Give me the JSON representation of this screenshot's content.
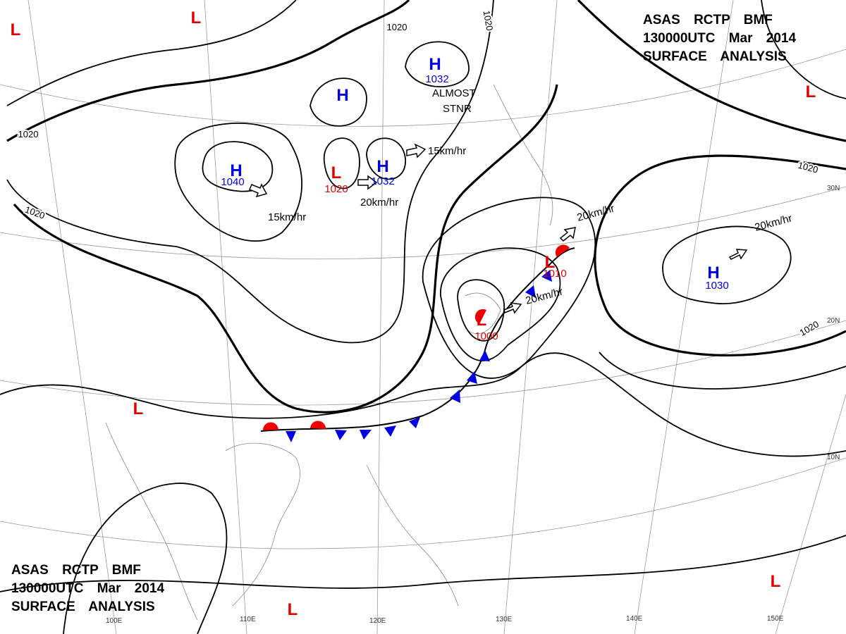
{
  "header": {
    "lines": [
      "ASAS RCTP BMF",
      "130000UTC Mar 2014",
      "SURFACE ANALYSIS"
    ]
  },
  "footer": {
    "lines": [
      "ASAS RCTP BMF",
      "130000UTC Mar 2014",
      "SURFACE ANALYSIS"
    ]
  },
  "pressure_centers": [
    {
      "type": "H",
      "value": "1040"
    },
    {
      "type": "L",
      "value": "1020"
    },
    {
      "type": "H",
      "value": "1032"
    },
    {
      "type": "H",
      "value": "1032"
    },
    {
      "type": "H"
    },
    {
      "type": "L",
      "value": "1010"
    },
    {
      "type": "L",
      "value": "1000"
    },
    {
      "type": "H",
      "value": "1030"
    },
    {
      "type": "L"
    },
    {
      "type": "L"
    },
    {
      "type": "L"
    },
    {
      "type": "L"
    },
    {
      "type": "L"
    },
    {
      "type": "L"
    }
  ],
  "isobar_labels": [
    "1020",
    "1020",
    "1020",
    "1020",
    "1020",
    "1020"
  ],
  "motion_labels": [
    "15km/hr",
    "20km/hr",
    "15km/hr",
    "20km/hr",
    "20km/hr",
    "20km/hr"
  ],
  "annotations": [
    "ALMOST",
    "STNR"
  ],
  "latitude_labels": [
    "30N",
    "20N",
    "10N"
  ],
  "longitude_labels": [
    "100E",
    "110E",
    "120E",
    "130E",
    "140E",
    "150E"
  ]
}
